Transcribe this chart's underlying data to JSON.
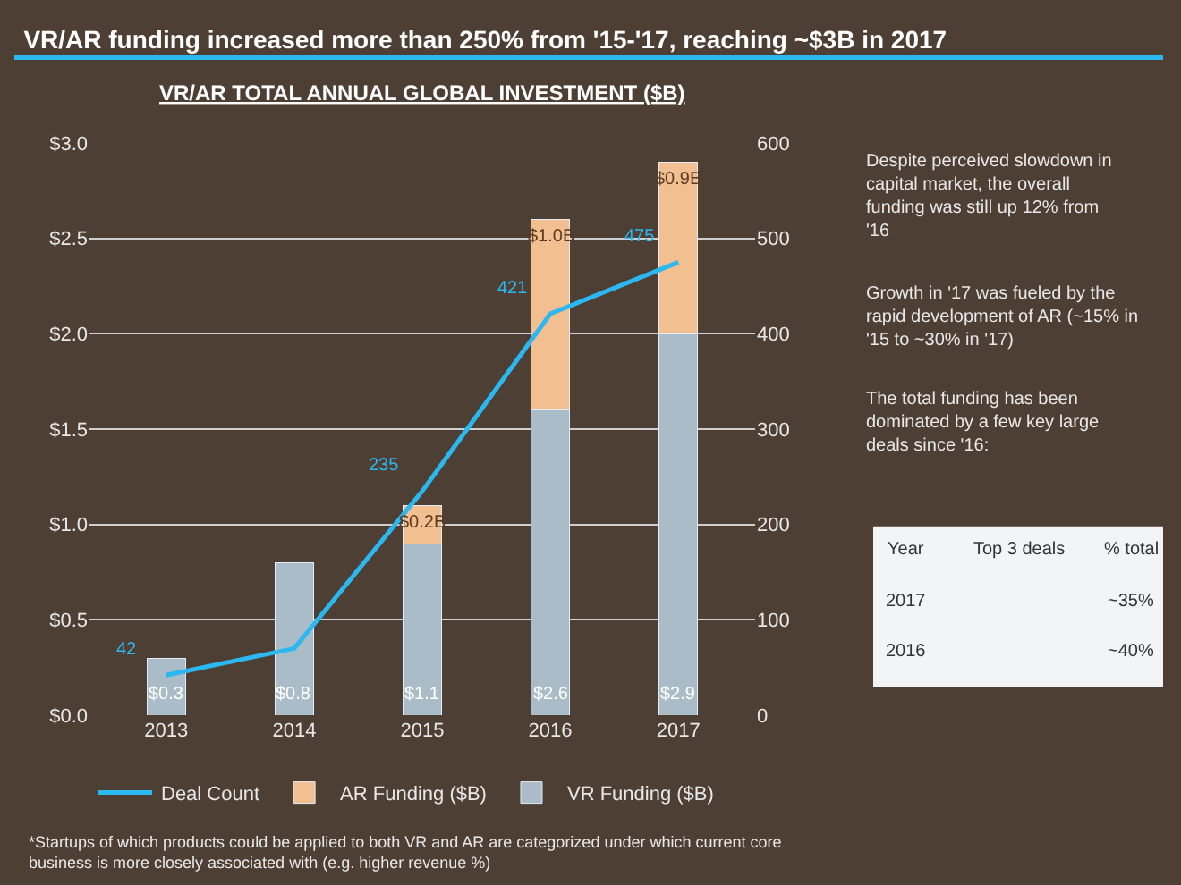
{
  "chart_data": {
    "type": "bar",
    "title": "VR/AR funding increased more than 250% from '15-'17, reaching ~$3B in 2017",
    "subtitle": "VR/AR TOTAL ANNUAL GLOBAL INVESTMENT ($B)",
    "categories": [
      "2013",
      "2014",
      "2015",
      "2016",
      "2017"
    ],
    "stacked": true,
    "series": [
      {
        "name": "VR Funding ($B)",
        "color": "#a9bcc8",
        "values": [
          0.3,
          0.8,
          0.9,
          1.6,
          2.0
        ]
      },
      {
        "name": "AR Funding ($B)",
        "color": "#f2bf90",
        "values": [
          null,
          null,
          0.2,
          1.0,
          0.9
        ],
        "value_labels": [
          null,
          null,
          "$0.2B",
          "$1.0B",
          "$0.9B"
        ]
      },
      {
        "name": "Deal Count",
        "type": "line",
        "axis": "y2",
        "color": "#2bb8f0",
        "marker": "none",
        "values": [
          42,
          70,
          235,
          421,
          475
        ],
        "value_labels": [
          "42",
          null,
          "235",
          "421",
          "475"
        ]
      }
    ],
    "totals": [
      "$0.3",
      "$0.8",
      "$1.1",
      "$2.6",
      "$2.9"
    ],
    "ylim": [
      0,
      3
    ],
    "yticks": [
      {
        "value": 0,
        "label": "$0.0"
      },
      {
        "value": 0.5,
        "label": "$0.5"
      },
      {
        "value": 1,
        "label": "$1.0"
      },
      {
        "value": 1.5,
        "label": "$1.5"
      },
      {
        "value": 2,
        "label": "$2.0"
      },
      {
        "value": 2.5,
        "label": "$2.5"
      },
      {
        "value": 3,
        "label": "$3.0"
      }
    ],
    "y2lim": [
      0,
      600
    ],
    "y2ticks": [
      0,
      100,
      200,
      300,
      400,
      500,
      600
    ],
    "grid": "y",
    "legend": "bottom",
    "annotations": [
      "Despite perceived slowdown in capital market, the overall funding was still up 12% from '16",
      "Growth in '17 was fueled by the rapid development of AR (~15% in '15 to ~30% in '17)",
      "The total funding has been dominated by a few key large deals since '16:",
      "*Startups of which products could be applied to both VR and AR are categorized under which current core business is more closely associated with (e.g. higher revenue %)",
      "Year",
      "Top 3 deals",
      "% total",
      "2017",
      "~35%",
      "2016",
      "~40%"
    ]
  }
}
